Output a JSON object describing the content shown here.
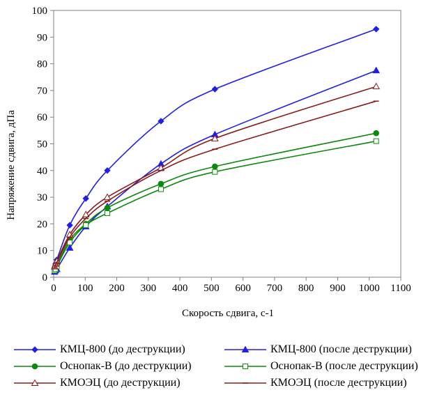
{
  "chart_data": {
    "type": "line",
    "xlabel": "Скорость сдвига, с-1",
    "ylabel": "Напряжение сдвига, дПа",
    "xlim": [
      0,
      1100
    ],
    "ylim": [
      0,
      100
    ],
    "x_ticks": [
      "0",
      "100",
      "200",
      "300",
      "400",
      "500",
      "600",
      "700",
      "800",
      "900",
      "1000",
      "1100"
    ],
    "y_ticks": [
      "0",
      "10",
      "20",
      "30",
      "40",
      "50",
      "60",
      "70",
      "80",
      "90",
      "100"
    ],
    "grid": false,
    "legend_position": "bottom",
    "series": [
      {
        "name": "КМЦ-800 (до деструкции)",
        "color": "#1f1fe6",
        "marker": "diamond-filled",
        "x": [
          3,
          6,
          10,
          51,
          102,
          170,
          340,
          511,
          1022
        ],
        "y": [
          3.5,
          5,
          6.5,
          19.5,
          29.5,
          40,
          58.5,
          70.5,
          93
        ]
      },
      {
        "name": "КМЦ-800 (после деструкции)",
        "color": "#1f1fe6",
        "marker": "triangle-filled",
        "x": [
          3,
          6,
          10,
          51,
          102,
          170,
          340,
          511,
          1022
        ],
        "y": [
          2,
          2.5,
          3,
          11,
          19,
          26.5,
          42.5,
          53.5,
          77.5
        ]
      },
      {
        "name": "Оснопак-В (до деструкции)",
        "color": "#0a8a0a",
        "marker": "circle-filled",
        "x": [
          3,
          6,
          10,
          51,
          102,
          170,
          340,
          511,
          1022
        ],
        "y": [
          3,
          3.5,
          4.5,
          14,
          20,
          26,
          35,
          41.5,
          54
        ]
      },
      {
        "name": "Оснопак-В (после деструкции)",
        "color": "#0a8a0a",
        "marker": "square-open",
        "x": [
          3,
          6,
          10,
          51,
          102,
          170,
          340,
          511,
          1022
        ],
        "y": [
          2.5,
          3,
          4,
          13,
          19.5,
          24,
          33,
          39.5,
          51
        ]
      },
      {
        "name": "КМОЭЦ (до деструкции)",
        "color": "#8b1a1a",
        "marker": "triangle-open",
        "x": [
          3,
          6,
          10,
          51,
          102,
          170,
          340,
          511,
          1022
        ],
        "y": [
          4,
          5,
          6,
          16,
          23.5,
          30,
          41,
          52,
          71.5
        ]
      },
      {
        "name": "КМОЭЦ (после деструкции)",
        "color": "#8b1a1a",
        "marker": "dash",
        "x": [
          3,
          6,
          10,
          51,
          102,
          170,
          340,
          511,
          1022
        ],
        "y": [
          3.5,
          4.5,
          5.5,
          15,
          22,
          28.5,
          40,
          48,
          66
        ]
      }
    ]
  }
}
